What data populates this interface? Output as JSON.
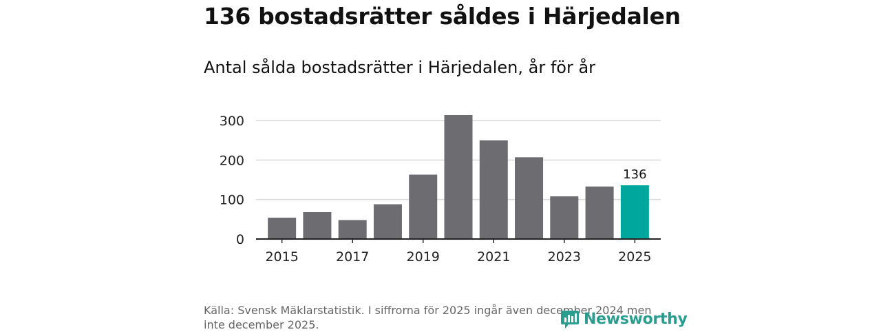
{
  "title": "136 bostadsrätter såldes i Härjedalen",
  "subtitle": "Antal sålda bostadsrätter i Härjedalen, år för år",
  "source": "Källa: Svensk Mäklarstatistik. I siffrorna för 2025 ingår även december 2024 men inte december 2025.",
  "brand": {
    "name": "Newsworthy",
    "icon": "bar-chart-speech-bubble-icon",
    "color": "#2a9d8f"
  },
  "colors": {
    "bar": "#6d6c71",
    "highlight": "#00a79d",
    "grid": "#d9d9d9",
    "axis": "#222222"
  },
  "chart_data": {
    "type": "bar",
    "title": "136 bostadsrätter såldes i Härjedalen",
    "subtitle": "Antal sålda bostadsrätter i Härjedalen, år för år",
    "categories": [
      "2015",
      "2016",
      "2017",
      "2018",
      "2019",
      "2020",
      "2021",
      "2022",
      "2023",
      "2024",
      "2025"
    ],
    "values": [
      54,
      68,
      48,
      88,
      163,
      314,
      250,
      207,
      108,
      133,
      136
    ],
    "highlight_index": 10,
    "highlight_label": "136",
    "x_tick_labels": [
      "2015",
      "2017",
      "2019",
      "2021",
      "2023",
      "2025"
    ],
    "y_ticks": [
      0,
      100,
      200,
      300
    ],
    "ylim": [
      0,
      320
    ],
    "xlabel": "",
    "ylabel": "",
    "grid": true
  }
}
